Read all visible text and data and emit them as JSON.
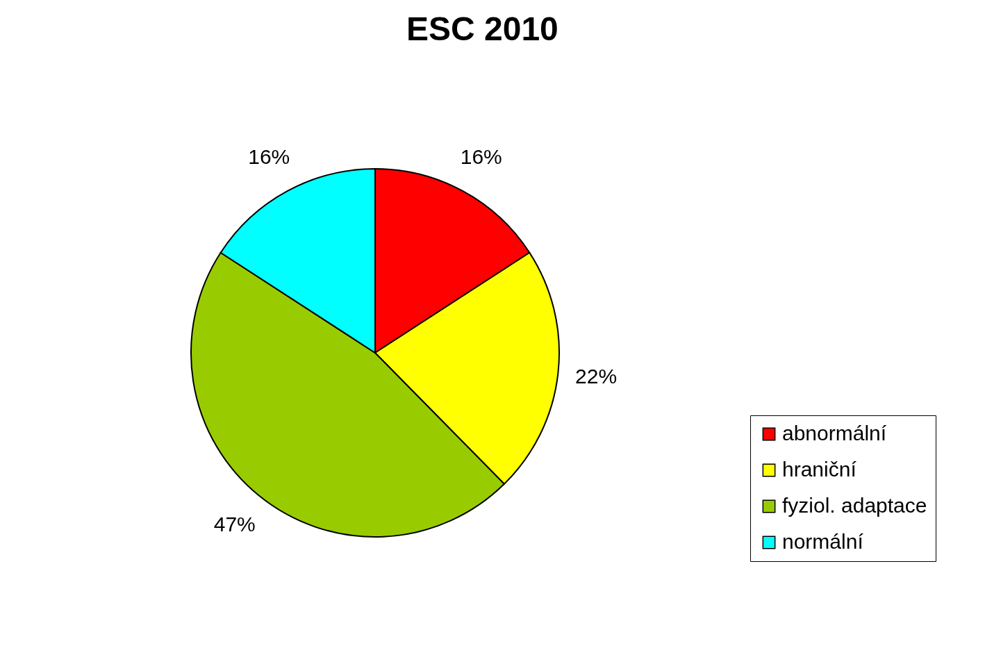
{
  "chart_data": {
    "type": "pie",
    "title": "ESC 2010",
    "categories": [
      "abnormální",
      "hraniční",
      "fyziol. adaptace",
      "normální"
    ],
    "values": [
      16,
      22,
      47,
      16
    ],
    "value_labels": [
      "16%",
      "22%",
      "47%",
      "16%"
    ],
    "colors": [
      "#ff0000",
      "#ffff00",
      "#99cc00",
      "#00ffff"
    ],
    "legend": "right"
  }
}
